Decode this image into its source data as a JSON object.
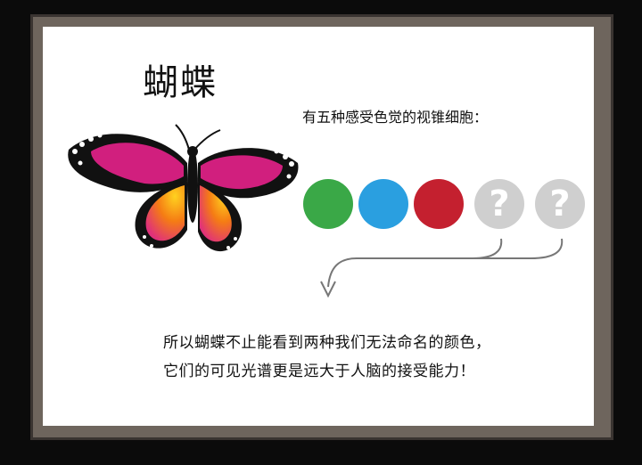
{
  "title": "蝴蝶",
  "subtitle": "有五种感受色觉的视锥细胞：",
  "cones": [
    {
      "color": "#3aa847",
      "kind": "color"
    },
    {
      "color": "#2a9fe0",
      "kind": "color"
    },
    {
      "color": "#c4202f",
      "kind": "color"
    },
    {
      "color": "#cfcfcf",
      "kind": "unknown",
      "symbol": "?"
    },
    {
      "color": "#cfcfcf",
      "kind": "unknown",
      "symbol": "?"
    }
  ],
  "caption": {
    "line1": "所以蝴蝶不止能看到两种我们无法命名的颜色，",
    "line2": "它们的可见光谱更是远大于人脑的接受能力！"
  }
}
